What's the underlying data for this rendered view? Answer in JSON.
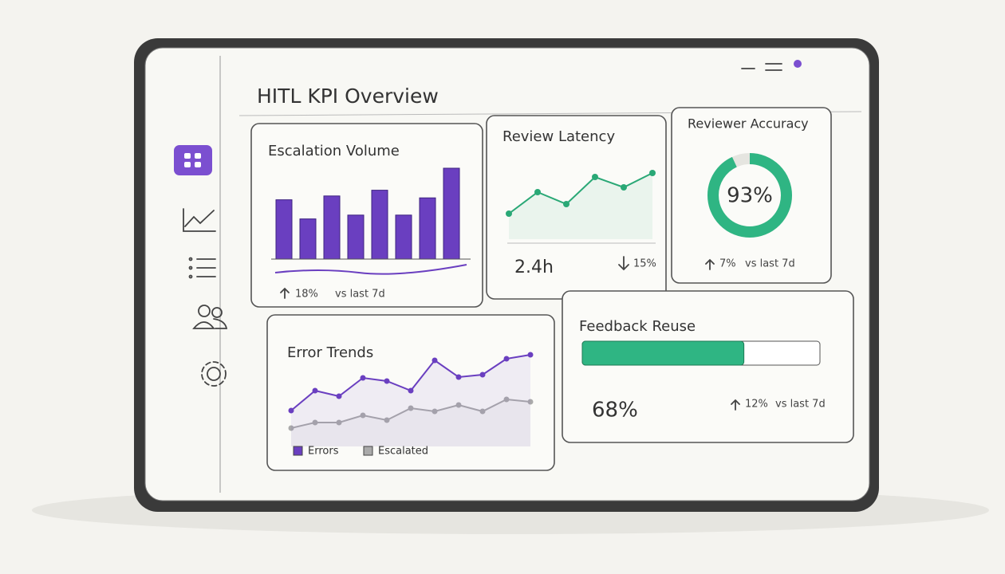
{
  "header": {
    "title": "HITL KPI Overview"
  },
  "escalation_volume": {
    "type": "bar",
    "title": "Escalation Volume",
    "color": "#6a3fc0",
    "values": [
      62,
      42,
      66,
      46,
      72,
      46,
      64,
      95
    ],
    "change": "18%",
    "comparison": "vs last 7d"
  },
  "review_latency": {
    "type": "line",
    "title": "Review Latency",
    "color": "#2aa876",
    "values": [
      32,
      59,
      44,
      78,
      65,
      83
    ],
    "value": "2.4h",
    "change": "15%"
  },
  "reviewer_accuracy": {
    "type": "donut",
    "title": "Reviewer Accuracy",
    "color": "#2fb583",
    "value": 93,
    "value_label": "93%",
    "change": "7%",
    "comparison": "vs last 7d"
  },
  "error_trends": {
    "type": "line",
    "title": "Error Trends",
    "series": [
      {
        "name": "Errors",
        "color": "#6a3fc0",
        "values": [
          45,
          70,
          63,
          86,
          82,
          70,
          108,
          87,
          90,
          110,
          115
        ]
      },
      {
        "name": "Escalated",
        "color": "#aaaaaa",
        "values": [
          23,
          30,
          30,
          39,
          33,
          48,
          44,
          52,
          44,
          59,
          56
        ]
      }
    ]
  },
  "feedback_reuse": {
    "type": "progress",
    "title": "Feedback Reuse",
    "color": "#2fb583",
    "value": 68,
    "value_label": "68%",
    "change": "12%",
    "comparison": "vs last 7d"
  }
}
